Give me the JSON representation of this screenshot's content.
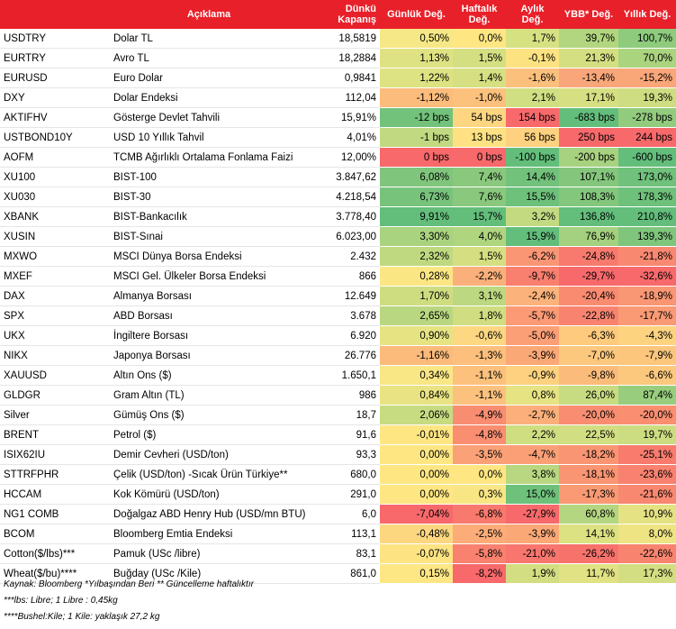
{
  "header": {
    "aciklama": "Açıklama",
    "close": "Dünkü Kapanış",
    "daily": "Günlük Değ.",
    "weekly": "Haftalık Değ.",
    "monthly": "Aylık Değ.",
    "ytd": "YBB* Değ.",
    "yearly": "Yıllık Değ."
  },
  "rows": [
    {
      "code": "USDTRY",
      "desc": "Dolar TL",
      "close": "18,5819",
      "d": "0,50%",
      "w": "0,0%",
      "m": "1,7%",
      "y": "39,7%",
      "yr": "100,7%",
      "dc": "#f6e886",
      "wc": "#fee683",
      "mc": "#d6e182",
      "yc": "#b2d67f",
      "yrc": "#8ecb7d"
    },
    {
      "code": "EURTRY",
      "desc": "Avro TL",
      "close": "18,2884",
      "d": "1,13%",
      "w": "1,5%",
      "m": "-0,1%",
      "y": "21,3%",
      "yr": "70,0%",
      "dc": "#dfe283",
      "wc": "#d4df82",
      "mc": "#fde282",
      "yc": "#d4df82",
      "yrc": "#abd47f"
    },
    {
      "code": "EURUSD",
      "desc": "Euro Dolar",
      "close": "0,9841",
      "d": "1,22%",
      "w": "1,4%",
      "m": "-1,6%",
      "y": "-13,4%",
      "yr": "-15,2%",
      "dc": "#dde282",
      "wc": "#d6df82",
      "mc": "#fcc07d",
      "yc": "#f9a77a",
      "yrc": "#f9a679"
    },
    {
      "code": "DXY",
      "desc": "Dolar Endeksi",
      "close": "112,04",
      "d": "-1,12%",
      "w": "-1,0%",
      "m": "2,1%",
      "y": "17,1%",
      "yr": "19,3%",
      "dc": "#fcbc7b",
      "wc": "#fcc27d",
      "mc": "#d0df82",
      "yc": "#d6df82",
      "yrc": "#cedd81"
    },
    {
      "code": "AKTIFHV",
      "desc": "Gösterge Devlet Tahvili",
      "close": "15,91%",
      "d": "-12 bps",
      "w": "54 bps",
      "m": "154 bps",
      "y": "-683 bps",
      "yr": "-278 bps",
      "dc": "#72c27b",
      "wc": "#fed681",
      "mc": "#f8696b",
      "yc": "#63be7b",
      "yrc": "#92cb7d"
    },
    {
      "code": "USTBOND10Y",
      "desc": "USD 10 Yıllık Tahvil",
      "close": "4,01%",
      "d": "-1 bps",
      "w": "13 bps",
      "m": "56 bps",
      "y": "250 bps",
      "yr": "244 bps",
      "dc": "#c1da81",
      "wc": "#fee182",
      "mc": "#fdd17f",
      "yc": "#f8696b",
      "yrc": "#f8696b"
    },
    {
      "code": "AOFM",
      "desc": "TCMB Ağırlıklı Ortalama Fonlama Faizi",
      "close": "12,00%",
      "d": "0 bps",
      "w": "0 bps",
      "m": "-100 bps",
      "y": "-200 bps",
      "yr": "-600 bps",
      "dc": "#f8696b",
      "wc": "#f8696b",
      "mc": "#63be7b",
      "yc": "#a7d27f",
      "yrc": "#63be7b"
    },
    {
      "code": "XU100",
      "desc": "BIST-100",
      "close": "3.847,62",
      "d": "6,08%",
      "w": "7,4%",
      "m": "14,4%",
      "y": "107,1%",
      "yr": "173,0%",
      "dc": "#80c57c",
      "wc": "#8ac97d",
      "mc": "#72c27b",
      "yc": "#84c77c",
      "yrc": "#70c17b"
    },
    {
      "code": "XU030",
      "desc": "BIST-30",
      "close": "4.218,54",
      "d": "6,73%",
      "w": "7,6%",
      "m": "15,5%",
      "y": "108,3%",
      "yr": "178,3%",
      "dc": "#78c37c",
      "wc": "#89c87d",
      "mc": "#6ec17b",
      "yc": "#83c77c",
      "yrc": "#6ec17b"
    },
    {
      "code": "XBANK",
      "desc": "BIST-Bankacılık",
      "close": "3.778,40",
      "d": "9,91%",
      "w": "15,7%",
      "m": "3,2%",
      "y": "136,8%",
      "yr": "210,8%",
      "dc": "#63be7b",
      "wc": "#63be7b",
      "mc": "#c3da81",
      "yc": "#63be7b",
      "yrc": "#63be7b"
    },
    {
      "code": "XUSIN",
      "desc": "BIST-Sınai",
      "close": "6.023,00",
      "d": "3,30%",
      "w": "4,0%",
      "m": "15,9%",
      "y": "76,9%",
      "yr": "139,3%",
      "dc": "#a9d37f",
      "wc": "#b0d57f",
      "mc": "#63be7b",
      "yc": "#a4d17f",
      "yrc": "#7fc57c"
    },
    {
      "code": "MXWO",
      "desc": "MSCI Dünya Borsa Endeksi",
      "close": "2.432",
      "d": "2,32%",
      "w": "1,5%",
      "m": "-6,2%",
      "y": "-24,8%",
      "yr": "-21,8%",
      "dc": "#bfd980",
      "wc": "#d5df82",
      "mc": "#fb9675",
      "yc": "#f87a6e",
      "yrc": "#f98870"
    },
    {
      "code": "MXEF",
      "desc": "MSCI Gel. Ülkeler Borsa Endeksi",
      "close": "866",
      "d": "0,28%",
      "w": "-2,2%",
      "m": "-9,7%",
      "y": "-29,7%",
      "yr": "-32,6%",
      "dc": "#fbe684",
      "wc": "#fbb07b",
      "mc": "#f97f6f",
      "yc": "#f8696b",
      "yrc": "#f8696b"
    },
    {
      "code": "DAX",
      "desc": "Almanya Borsası",
      "close": "12.649",
      "d": "1,70%",
      "w": "3,1%",
      "m": "-2,4%",
      "y": "-20,4%",
      "yr": "-18,9%",
      "dc": "#cfdd81",
      "wc": "#bcd880",
      "mc": "#fcb27b",
      "yc": "#f98b71",
      "yrc": "#f99673"
    },
    {
      "code": "SPX",
      "desc": "ABD Borsası",
      "close": "3.678",
      "d": "2,65%",
      "w": "1,8%",
      "m": "-5,7%",
      "y": "-22,8%",
      "yr": "-17,7%",
      "dc": "#b9d780",
      "wc": "#d0dd81",
      "mc": "#fb9a75",
      "yc": "#f88470",
      "yrc": "#f99a74"
    },
    {
      "code": "UKX",
      "desc": "İngiltere Borsası",
      "close": "6.920",
      "d": "0,90%",
      "w": "-0,6%",
      "m": "-5,0%",
      "y": "-6,3%",
      "yr": "-4,3%",
      "dc": "#e6e383",
      "wc": "#fdd781",
      "mc": "#fb9f76",
      "yc": "#fdca7e",
      "yrc": "#fed380"
    },
    {
      "code": "NIKX",
      "desc": "Japonya Borsası",
      "close": "26.776",
      "d": "-1,16%",
      "w": "-1,3%",
      "m": "-3,9%",
      "y": "-7,0%",
      "yr": "-7,9%",
      "dc": "#fcba7b",
      "wc": "#fcbf7c",
      "mc": "#fba877",
      "yc": "#fcc87e",
      "yrc": "#fcc67d"
    },
    {
      "code": "XAUUSD",
      "desc": "Altın Ons ($)",
      "close": "1.650,1",
      "d": "0,34%",
      "w": "-1,1%",
      "m": "-0,9%",
      "y": "-9,8%",
      "yr": "-6,6%",
      "dc": "#f9e685",
      "wc": "#fcc17d",
      "mc": "#fdd17f",
      "yc": "#fbbc7b",
      "yrc": "#fcc87e"
    },
    {
      "code": "GLDGR",
      "desc": "Gram Altın (TL)",
      "close": "986",
      "d": "0,84%",
      "w": "-1,1%",
      "m": "0,8%",
      "y": "26,0%",
      "yr": "87,4%",
      "dc": "#e9e383",
      "wc": "#fcc17d",
      "mc": "#e6e383",
      "yc": "#c7db81",
      "yrc": "#99cd7e"
    },
    {
      "code": "Silver",
      "desc": "Gümüş Ons ($)",
      "close": "18,7",
      "d": "2,06%",
      "w": "-4,9%",
      "m": "-2,7%",
      "y": "-20,0%",
      "yr": "-20,0%",
      "dc": "#c7db81",
      "wc": "#f98d71",
      "mc": "#fcaf7a",
      "yc": "#f98d71",
      "yrc": "#f98e71"
    },
    {
      "code": "BRENT",
      "desc": "Petrol ($)",
      "close": "91,6",
      "d": "-0,01%",
      "w": "-4,8%",
      "m": "2,2%",
      "y": "22,5%",
      "yr": "19,7%",
      "dc": "#fee683",
      "wc": "#f98e71",
      "mc": "#cfde81",
      "yc": "#d1de82",
      "yrc": "#ccdd81"
    },
    {
      "code": "ISIX62IU",
      "desc": "Demir Cevheri (USD/ton)",
      "close": "93,3",
      "d": "0,00%",
      "w": "-3,5%",
      "m": "-4,7%",
      "y": "-18,2%",
      "yr": "-25,1%",
      "dc": "#fee683",
      "wc": "#faa177",
      "mc": "#fba076",
      "yc": "#f99572",
      "yrc": "#f87b6e"
    },
    {
      "code": "STTRFPHR",
      "desc": "Çelik (USD/ton) -Sıcak Ürün Türkiye**",
      "close": "680,0",
      "d": "0,00%",
      "w": "0,0%",
      "m": "3,8%",
      "y": "-18,1%",
      "yr": "-23,6%",
      "dc": "#fee683",
      "wc": "#fee683",
      "mc": "#b8d780",
      "yc": "#f99572",
      "yrc": "#f8816f"
    },
    {
      "code": "HCCAM",
      "desc": "Kok Kömürü (USD/ton)",
      "close": "291,0",
      "d": "0,00%",
      "w": "0,3%",
      "m": "15,0%",
      "y": "-17,3%",
      "yr": "-21,6%",
      "dc": "#fee683",
      "wc": "#f8e685",
      "mc": "#6ec17b",
      "yc": "#f99a74",
      "yrc": "#f98870"
    },
    {
      "code": "NG1 COMB",
      "desc": "Doğalgaz ABD Henry Hub (USD/mn BTU)",
      "close": "6,0",
      "d": "-7,04%",
      "w": "-6,8%",
      "m": "-27,9%",
      "y": "60,8%",
      "yr": "10,9%",
      "dc": "#f8696b",
      "wc": "#f8796d",
      "mc": "#f8696b",
      "yc": "#b5d680",
      "yrc": "#e4e283"
    },
    {
      "code": "BCOM",
      "desc": "Bloomberg Emtia Endeksi",
      "close": "113,1",
      "d": "-0,48%",
      "w": "-2,5%",
      "m": "-3,9%",
      "y": "14,1%",
      "yr": "8,0%",
      "dc": "#fdd780",
      "wc": "#fbac79",
      "mc": "#fba877",
      "yc": "#dce182",
      "yrc": "#eee483"
    },
    {
      "code": "Cotton($/lbs)***",
      "desc": "Pamuk (USc /libre)",
      "close": "83,1",
      "d": "-0,07%",
      "w": "-5,8%",
      "m": "-21,0%",
      "y": "-26,2%",
      "yr": "-22,6%",
      "dc": "#fee383",
      "wc": "#f8816f",
      "mc": "#f8766d",
      "yc": "#f8726c",
      "yrc": "#f8846f"
    },
    {
      "code": "Wheat($/bu)****",
      "desc": "Buğday (USc /Kile)",
      "close": "861,0",
      "d": "0,15%",
      "w": "-8,2%",
      "m": "1,9%",
      "y": "11,7%",
      "yr": "17,3%",
      "dc": "#fde684",
      "wc": "#f8696b",
      "mc": "#d3de82",
      "yc": "#e0e283",
      "yrc": "#d3de82"
    }
  ],
  "notes": {
    "line1": "Kaynak: Bloomberg *Yılbaşından Beri  ** Güncelleme haftalıktır",
    "line2": "***lbs: Libre; 1 Libre : 0,45kg",
    "line3": "****Bushel:Kile; 1 Kile: yaklaşık 27,2 kg"
  }
}
